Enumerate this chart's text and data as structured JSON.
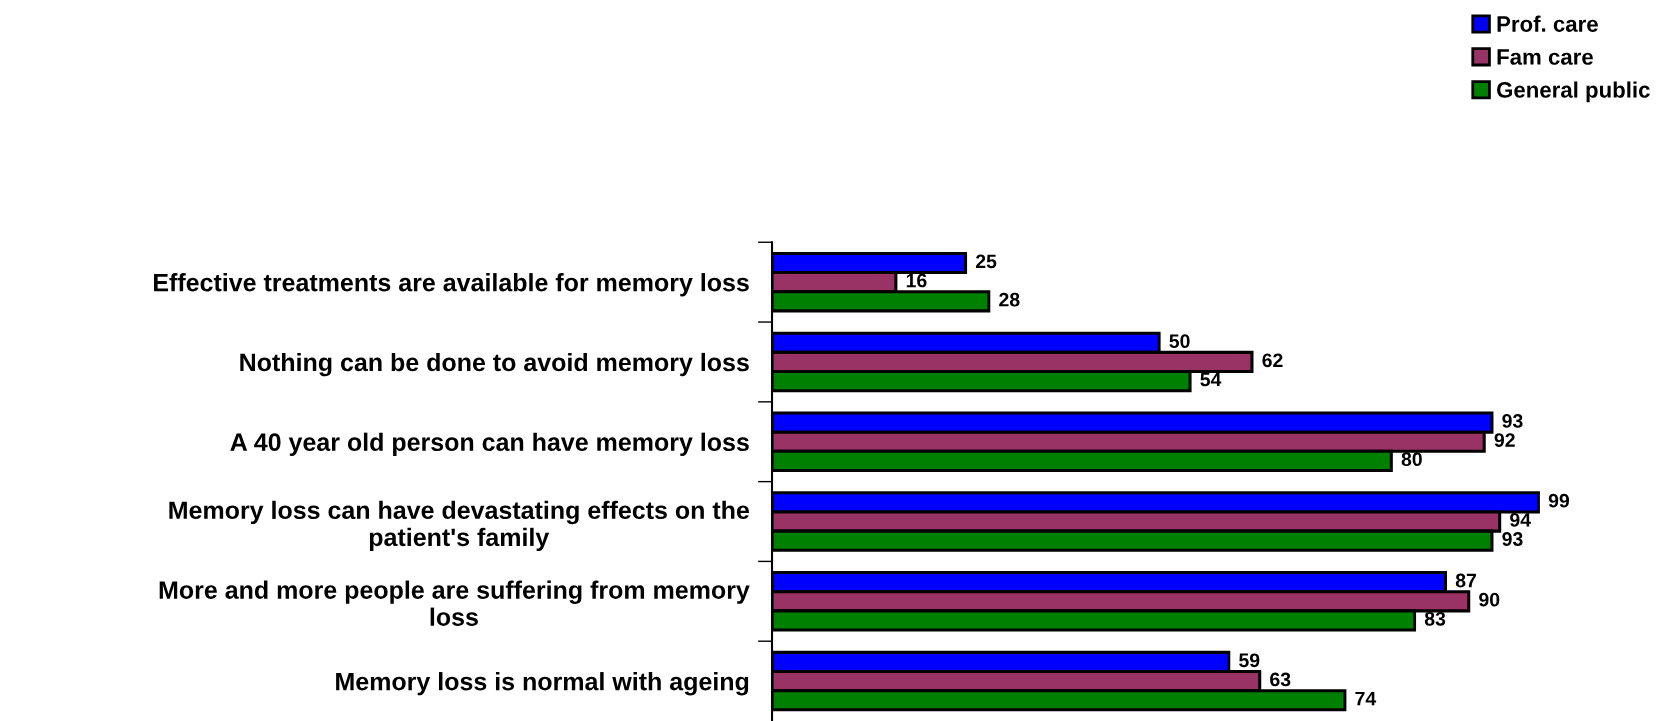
{
  "chart_data": {
    "type": "bar",
    "orientation": "horizontal",
    "categories": [
      "Effective treatments are available for memory loss",
      "Nothing can be done to avoid memory loss",
      "A 40 year old person can have memory loss",
      "Memory loss can have devastating effects on the\npatient's family",
      "More and more people are suffering from memory\nloss",
      "Memory loss is normal with ageing"
    ],
    "series": [
      {
        "name": "Prof. care",
        "color": "#0000ff",
        "values": [
          25,
          50,
          93,
          99,
          87,
          59
        ]
      },
      {
        "name": "Fam care",
        "color": "#993366",
        "values": [
          16,
          62,
          92,
          94,
          90,
          63
        ]
      },
      {
        "name": "General public",
        "color": "#008000",
        "values": [
          28,
          54,
          80,
          93,
          83,
          74
        ]
      }
    ],
    "tick_labels": "y",
    "data_labels": true,
    "legend": "top right"
  }
}
